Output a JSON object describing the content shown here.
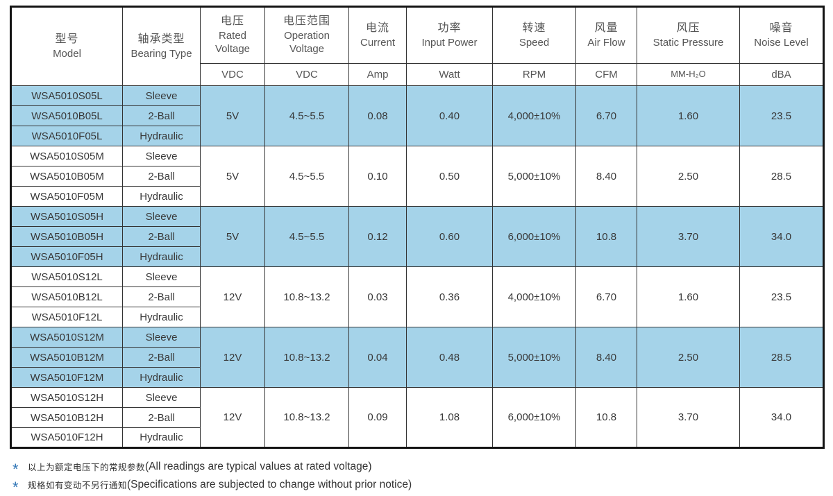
{
  "table": {
    "columns": [
      {
        "zh": "型号",
        "en": "Model",
        "unit": ""
      },
      {
        "zh": "轴承类型",
        "en": "Bearing Type",
        "unit": ""
      },
      {
        "zh": "电压",
        "en": "Rated Voltage",
        "unit": "VDC"
      },
      {
        "zh": "电压范围",
        "en": "Operation Voltage",
        "unit": "VDC"
      },
      {
        "zh": "电流",
        "en": "Current",
        "unit": "Amp"
      },
      {
        "zh": "功率",
        "en": "Input Power",
        "unit": "Watt"
      },
      {
        "zh": "转速",
        "en": "Speed",
        "unit": "RPM"
      },
      {
        "zh": "风量",
        "en": "Air Flow",
        "unit": "CFM"
      },
      {
        "zh": "风压",
        "en": "Static Pressure",
        "unit": "MM-H₂O"
      },
      {
        "zh": "噪音",
        "en": "Noise Level",
        "unit": "dBA"
      }
    ],
    "groups": [
      {
        "highlight": true,
        "rows": [
          {
            "model": "WSA5010S05L",
            "bearing": "Sleeve"
          },
          {
            "model": "WSA5010B05L",
            "bearing": "2-Ball"
          },
          {
            "model": "WSA5010F05L",
            "bearing": "Hydraulic"
          }
        ],
        "rated_voltage": "5V",
        "op_voltage": "4.5~5.5",
        "current": "0.08",
        "power": "0.40",
        "speed": "4,000±10%",
        "airflow": "6.70",
        "pressure": "1.60",
        "noise": "23.5"
      },
      {
        "highlight": false,
        "rows": [
          {
            "model": "WSA5010S05M",
            "bearing": "Sleeve"
          },
          {
            "model": "WSA5010B05M",
            "bearing": "2-Ball"
          },
          {
            "model": "WSA5010F05M",
            "bearing": "Hydraulic"
          }
        ],
        "rated_voltage": "5V",
        "op_voltage": "4.5~5.5",
        "current": "0.10",
        "power": "0.50",
        "speed": "5,000±10%",
        "airflow": "8.40",
        "pressure": "2.50",
        "noise": "28.5"
      },
      {
        "highlight": true,
        "rows": [
          {
            "model": "WSA5010S05H",
            "bearing": "Sleeve"
          },
          {
            "model": "WSA5010B05H",
            "bearing": "2-Ball"
          },
          {
            "model": "WSA5010F05H",
            "bearing": "Hydraulic"
          }
        ],
        "rated_voltage": "5V",
        "op_voltage": "4.5~5.5",
        "current": "0.12",
        "power": "0.60",
        "speed": "6,000±10%",
        "airflow": "10.8",
        "pressure": "3.70",
        "noise": "34.0"
      },
      {
        "highlight": false,
        "rows": [
          {
            "model": "WSA5010S12L",
            "bearing": "Sleeve"
          },
          {
            "model": "WSA5010B12L",
            "bearing": "2-Ball"
          },
          {
            "model": "WSA5010F12L",
            "bearing": "Hydraulic"
          }
        ],
        "rated_voltage": "12V",
        "op_voltage": "10.8~13.2",
        "current": "0.03",
        "power": "0.36",
        "speed": "4,000±10%",
        "airflow": "6.70",
        "pressure": "1.60",
        "noise": "23.5"
      },
      {
        "highlight": true,
        "rows": [
          {
            "model": "WSA5010S12M",
            "bearing": "Sleeve"
          },
          {
            "model": "WSA5010B12M",
            "bearing": "2-Ball"
          },
          {
            "model": "WSA5010F12M",
            "bearing": "Hydraulic"
          }
        ],
        "rated_voltage": "12V",
        "op_voltage": "10.8~13.2",
        "current": "0.04",
        "power": "0.48",
        "speed": "5,000±10%",
        "airflow": "8.40",
        "pressure": "2.50",
        "noise": "28.5"
      },
      {
        "highlight": false,
        "rows": [
          {
            "model": "WSA5010S12H",
            "bearing": "Sleeve"
          },
          {
            "model": "WSA5010B12H",
            "bearing": "2-Ball"
          },
          {
            "model": "WSA5010F12H",
            "bearing": "Hydraulic"
          }
        ],
        "rated_voltage": "12V",
        "op_voltage": "10.8~13.2",
        "current": "0.09",
        "power": "1.08",
        "speed": "6,000±10%",
        "airflow": "10.8",
        "pressure": "3.70",
        "noise": "34.0"
      }
    ],
    "footnotes": [
      {
        "star": "*",
        "zh": "以上为额定电压下的常规参数",
        "en": "(All readings are typical values at rated voltage)"
      },
      {
        "star": "*",
        "zh": "规格如有变动不另行通知",
        "en": "(Specifications are subjected to change without prior notice)"
      }
    ],
    "colors": {
      "highlight": "#a5d3e9",
      "accent_blue": "#2e74b5"
    }
  }
}
